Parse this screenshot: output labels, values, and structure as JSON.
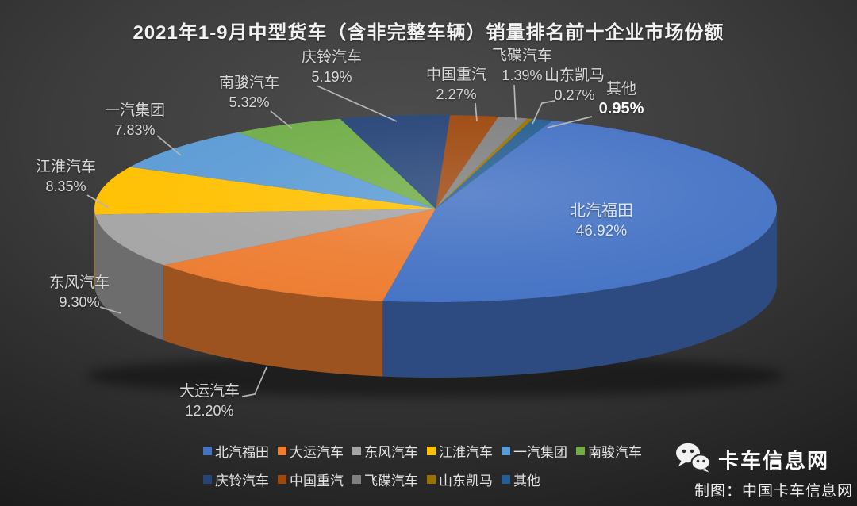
{
  "chart_data": {
    "type": "pie",
    "style": "3d",
    "title": "2021年1-9月中型货车（含非完整车辆）销量排名前十企业市场份额",
    "unit": "%",
    "legend_position": "bottom",
    "series": [
      {
        "name": "北汽福田",
        "value": 46.92,
        "label": "46.92%",
        "color": "#4472C4"
      },
      {
        "name": "大运汽车",
        "value": 12.2,
        "label": "12.20%",
        "color": "#ED7D31"
      },
      {
        "name": "东风汽车",
        "value": 9.3,
        "label": "9.30%",
        "color": "#A5A5A5"
      },
      {
        "name": "江淮汽车",
        "value": 8.35,
        "label": "8.35%",
        "color": "#FFC000"
      },
      {
        "name": "一汽集团",
        "value": 7.83,
        "label": "7.83%",
        "color": "#5B9BD5"
      },
      {
        "name": "南骏汽车",
        "value": 5.32,
        "label": "5.32%",
        "color": "#70AD47"
      },
      {
        "name": "庆铃汽车",
        "value": 5.19,
        "label": "5.19%",
        "color": "#264478"
      },
      {
        "name": "中国重汽",
        "value": 2.27,
        "label": "2.27%",
        "color": "#9E480E"
      },
      {
        "name": "飞碟汽车",
        "value": 1.39,
        "label": "1.39%",
        "color": "#808080"
      },
      {
        "name": "山东凯马",
        "value": 0.27,
        "label": "0.27%",
        "color": "#997300"
      },
      {
        "name": "其他",
        "value": 0.95,
        "label": "0.95%",
        "color": "#255E91"
      }
    ]
  },
  "watermark": {
    "brand": "卡车信息网",
    "credit": "制图：中国卡车信息网"
  }
}
